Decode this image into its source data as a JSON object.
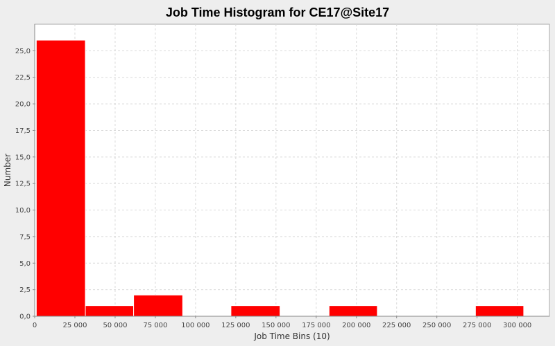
{
  "chart_data": {
    "type": "bar",
    "title": "Job Time Histogram for CE17@Site17",
    "xlabel": "Job Time Bins (10)",
    "ylabel": "Number",
    "xlim": [
      0,
      320000
    ],
    "ylim": [
      0,
      27.5
    ],
    "x_ticks": [
      0,
      25000,
      50000,
      75000,
      100000,
      125000,
      150000,
      175000,
      200000,
      225000,
      250000,
      275000,
      300000
    ],
    "x_tick_labels": [
      "0",
      "25 000",
      "50 000",
      "75 000",
      "100 000",
      "125 000",
      "150 000",
      "175 000",
      "200 000",
      "225 000",
      "250 000",
      "275 000",
      "300 000"
    ],
    "y_ticks": [
      0,
      2.5,
      5,
      7.5,
      10,
      12.5,
      15,
      17.5,
      20,
      22.5,
      25
    ],
    "y_tick_labels": [
      "0,0",
      "2,5",
      "5,0",
      "7,5",
      "10,0",
      "12,5",
      "15,0",
      "17,5",
      "20,0",
      "22,5",
      "25,0"
    ],
    "bins": [
      {
        "start": 1000,
        "end": 31500,
        "value": 26
      },
      {
        "start": 31500,
        "end": 61500,
        "value": 1
      },
      {
        "start": 61500,
        "end": 92000,
        "value": 2
      },
      {
        "start": 92000,
        "end": 122000,
        "value": 0
      },
      {
        "start": 122000,
        "end": 152500,
        "value": 1
      },
      {
        "start": 152500,
        "end": 183000,
        "value": 0
      },
      {
        "start": 183000,
        "end": 213000,
        "value": 1
      },
      {
        "start": 213000,
        "end": 243500,
        "value": 0
      },
      {
        "start": 243500,
        "end": 274000,
        "value": 0
      },
      {
        "start": 274000,
        "end": 304000,
        "value": 1
      }
    ],
    "bar_color": "#ff0000",
    "grid": true,
    "legend": "none"
  }
}
